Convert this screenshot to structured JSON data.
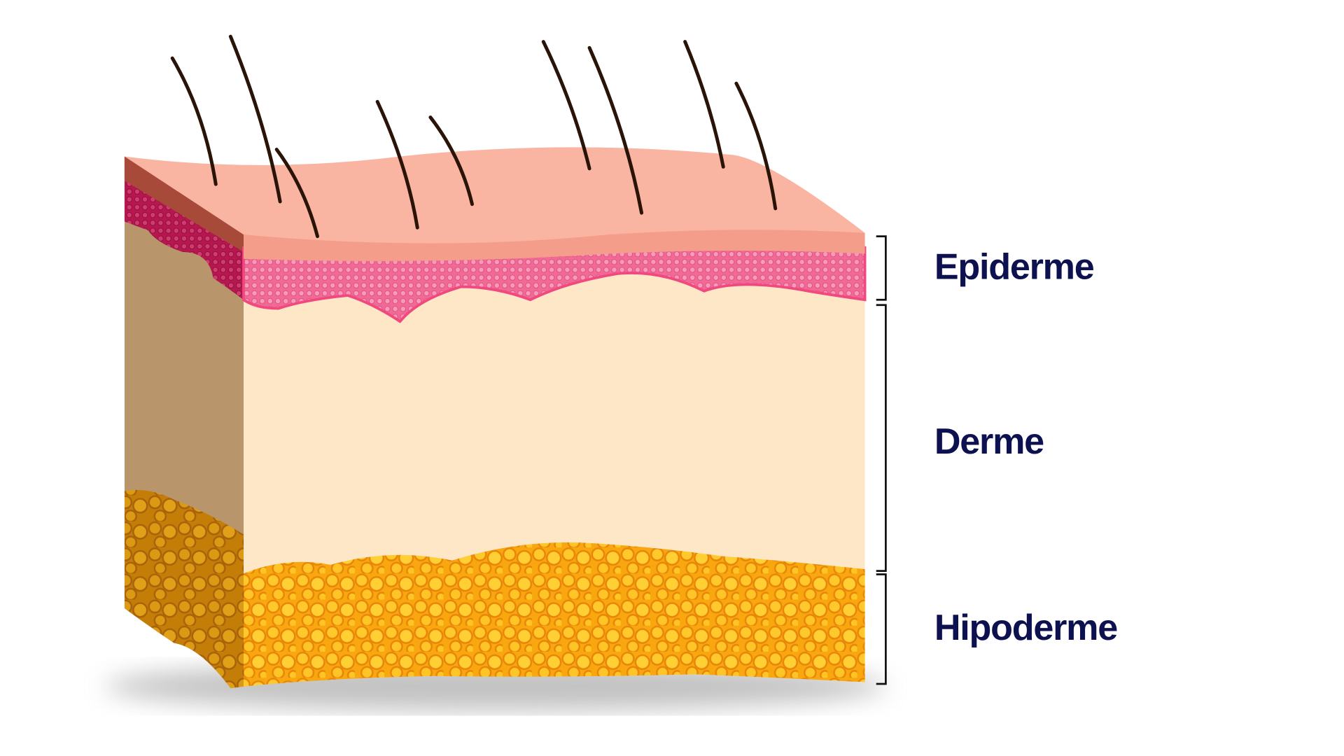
{
  "layers": [
    {
      "label": "Epiderme"
    },
    {
      "label": "Derme"
    },
    {
      "label": "Hipoderme"
    }
  ]
}
